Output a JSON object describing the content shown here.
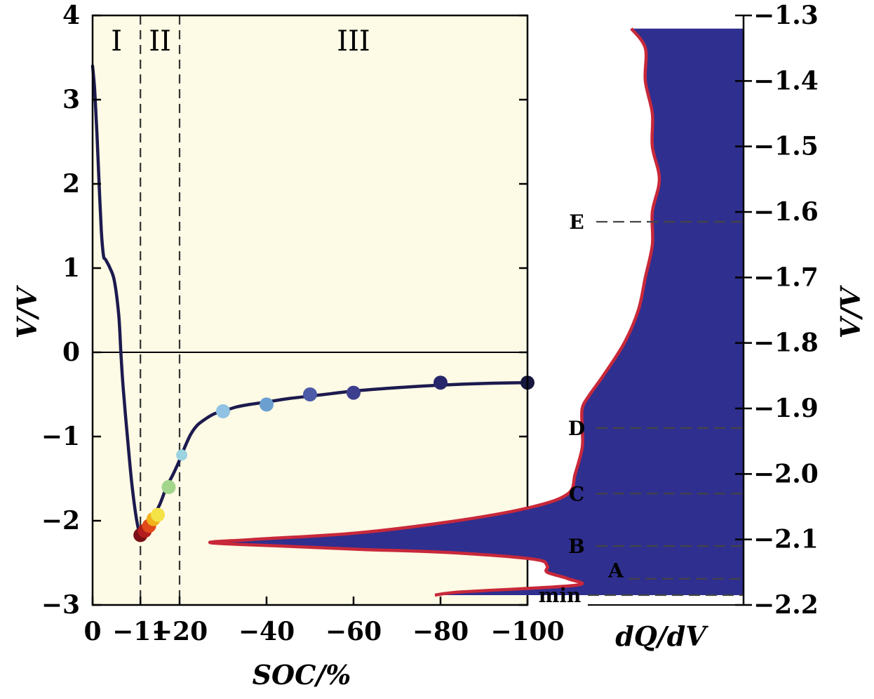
{
  "chart_data": [
    {
      "type": "line",
      "xlabel": "SOC/%",
      "ylabel": "V/V",
      "xlim": [
        0,
        -100
      ],
      "ylim": [
        -3,
        4
      ],
      "x_ticks": [
        0,
        -11,
        -20,
        -40,
        -60,
        -80,
        -100
      ],
      "x_tick_labels": [
        "0",
        "−11",
        "−20",
        "−40",
        "−60",
        "−80",
        "−100"
      ],
      "y_ticks": [
        4,
        3,
        2,
        1,
        0,
        -1,
        -2,
        -3
      ],
      "y_tick_labels": [
        "4",
        "3",
        "2",
        "1",
        "0",
        "−1",
        "−2",
        "−3"
      ],
      "region_boundaries": [
        -11,
        -20
      ],
      "regions": [
        {
          "label": "I",
          "x": -5.5
        },
        {
          "label": "II",
          "x": -15.5
        },
        {
          "label": "III",
          "x": -60
        }
      ],
      "series": [
        {
          "color": "#1c1a4e",
          "x": [
            0,
            -0.5,
            -1,
            -1.5,
            -2,
            -2.5,
            -3,
            -4,
            -5,
            -6,
            -6.5,
            -7,
            -8,
            -9,
            -10,
            -10.8,
            -11.5,
            -12.5,
            -14,
            -15.5,
            -17,
            -18.5,
            -20,
            -21,
            -22.5,
            -24,
            -26,
            -28,
            -30,
            -33,
            -36,
            -40,
            -45,
            -50,
            -55,
            -60,
            -70,
            -80,
            -90,
            -100
          ],
          "y": [
            3.4,
            3.1,
            2.6,
            2.0,
            1.45,
            1.15,
            1.1,
            1.0,
            0.85,
            0.45,
            0.0,
            -0.4,
            -1.0,
            -1.55,
            -1.95,
            -2.15,
            -2.2,
            -2.1,
            -1.95,
            -1.8,
            -1.6,
            -1.45,
            -1.28,
            -1.15,
            -0.98,
            -0.87,
            -0.79,
            -0.73,
            -0.7,
            -0.65,
            -0.62,
            -0.59,
            -0.55,
            -0.52,
            -0.49,
            -0.46,
            -0.42,
            -0.39,
            -0.37,
            -0.36
          ]
        }
      ],
      "markers": [
        {
          "x": -11,
          "y": -2.17,
          "color": "#7a1016"
        },
        {
          "x": -12,
          "y": -2.12,
          "color": "#b21d1d"
        },
        {
          "x": -13,
          "y": -2.06,
          "color": "#e04a1a"
        },
        {
          "x": -14,
          "y": -1.98,
          "color": "#f2b21b"
        },
        {
          "x": -15,
          "y": -1.93,
          "color": "#f4e347"
        },
        {
          "x": -17.5,
          "y": -1.6,
          "color": "#a2d78b"
        },
        {
          "x": -20.5,
          "y": -1.22,
          "color": "#9cd3e0"
        },
        {
          "x": -30,
          "y": -0.7,
          "color": "#8fc2e3"
        },
        {
          "x": -40,
          "y": -0.62,
          "color": "#6b9fd0"
        },
        {
          "x": -50,
          "y": -0.5,
          "color": "#4b5ba8"
        },
        {
          "x": -60,
          "y": -0.48,
          "color": "#3d3f8e"
        },
        {
          "x": -80,
          "y": -0.36,
          "color": "#26266b"
        },
        {
          "x": -100,
          "y": -0.36,
          "color": "#17173f"
        }
      ],
      "colors": {
        "plot_background": "#fdfae5",
        "axis": "#000000",
        "curve": "#1c1a4e"
      }
    },
    {
      "type": "area",
      "xlabel": "dQ/dV",
      "ylabel": "V/V",
      "ylim": [
        -2.2,
        -1.3
      ],
      "y_ticks": [
        -1.3,
        -1.4,
        -1.5,
        -1.6,
        -1.7,
        -1.8,
        -1.9,
        -2.0,
        -2.1,
        -2.2
      ],
      "y_tick_labels": [
        "−1.3",
        "−1.4",
        "−1.5",
        "−1.6",
        "−1.7",
        "−1.8",
        "−1.9",
        "−2.0",
        "−2.1",
        "−2.2"
      ],
      "peaks": [
        {
          "label": "E",
          "y": -1.615
        },
        {
          "label": "D",
          "y": -1.93
        },
        {
          "label": "C",
          "y": -2.03
        },
        {
          "label": "B",
          "y": -2.11
        },
        {
          "label": "A",
          "y": -2.16
        },
        {
          "label": "min",
          "y": -2.185
        }
      ],
      "profile": {
        "y": [
          -1.32,
          -1.35,
          -1.4,
          -1.45,
          -1.5,
          -1.55,
          -1.6,
          -1.65,
          -1.7,
          -1.75,
          -1.8,
          -1.85,
          -1.88,
          -1.9,
          -1.93,
          -1.96,
          -2.0,
          -2.03,
          -2.05,
          -2.07,
          -2.09,
          -2.1,
          -2.105,
          -2.11,
          -2.115,
          -2.12,
          -2.13,
          -2.14,
          -2.15,
          -2.16,
          -2.17,
          -2.18,
          -2.185
        ],
        "dqdv": [
          0.16,
          0.14,
          0.14,
          0.13,
          0.13,
          0.12,
          0.13,
          0.13,
          0.14,
          0.15,
          0.17,
          0.2,
          0.22,
          0.23,
          0.23,
          0.23,
          0.24,
          0.25,
          0.3,
          0.4,
          0.55,
          0.7,
          0.76,
          0.66,
          0.55,
          0.42,
          0.3,
          0.28,
          0.28,
          0.25,
          0.24,
          0.4,
          0.44
        ]
      },
      "colors": {
        "fill": "#2f2f8f",
        "outline": "#c8283a",
        "axis": "#000000"
      }
    }
  ]
}
